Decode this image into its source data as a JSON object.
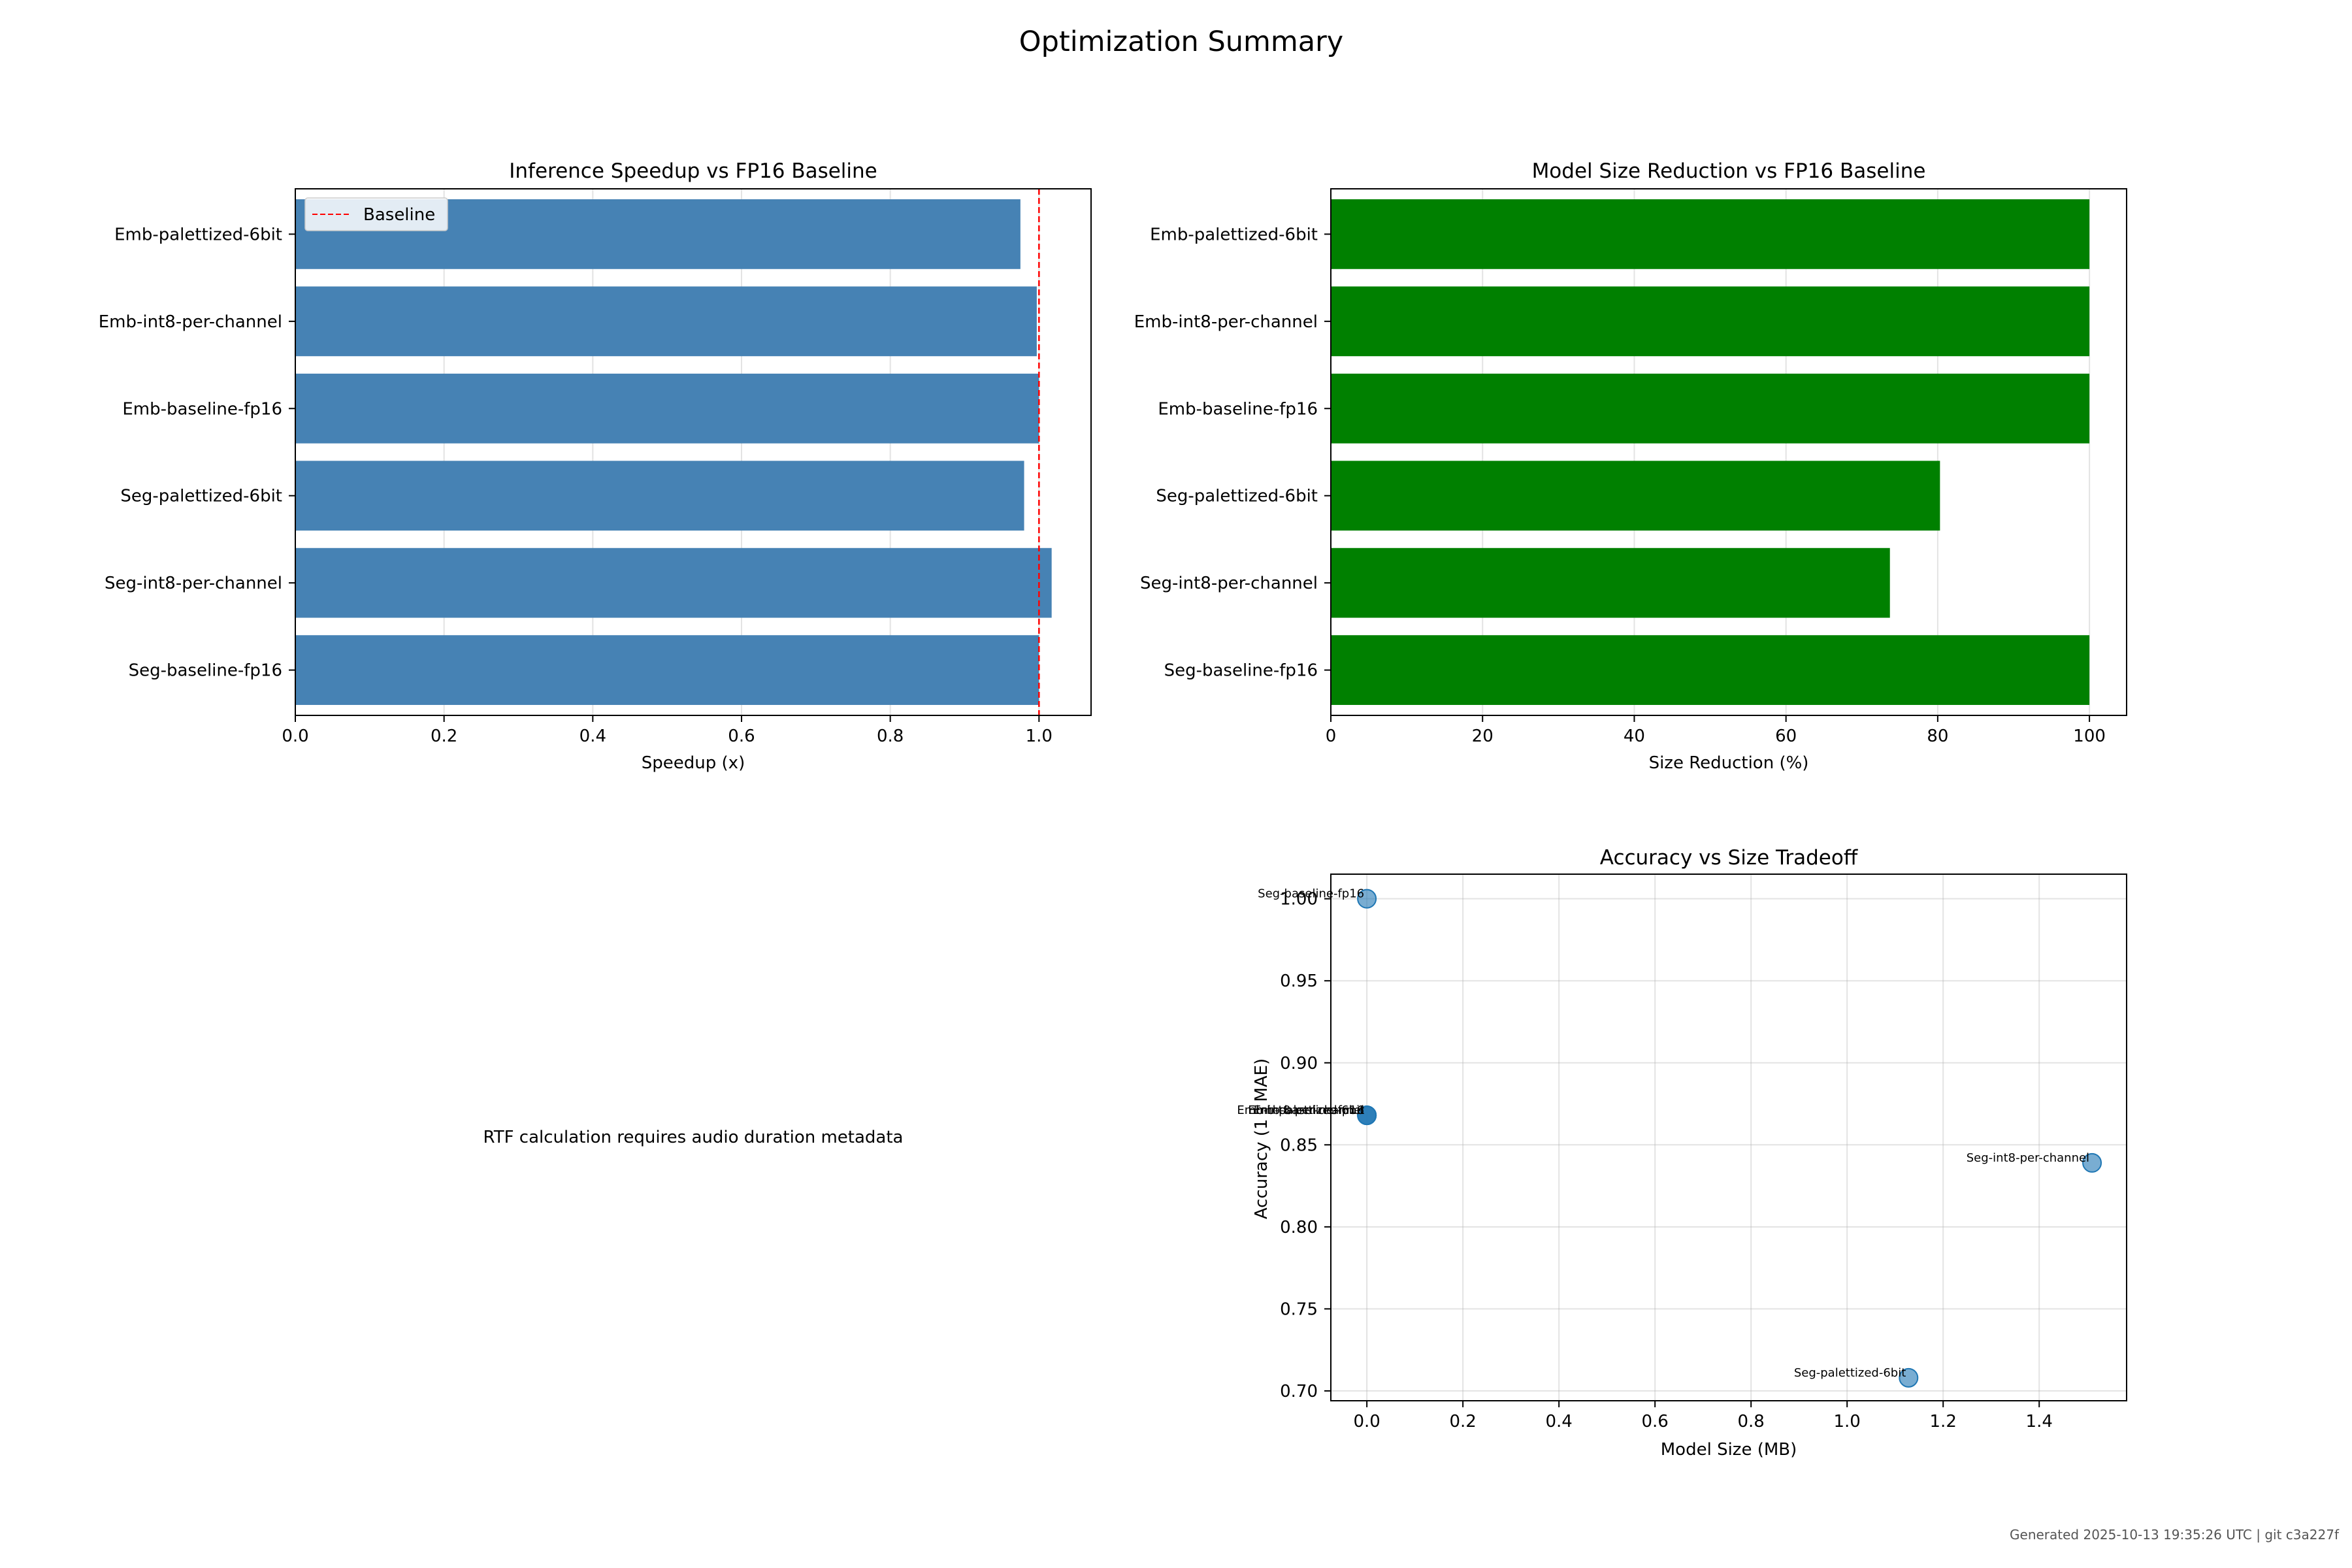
{
  "figure": {
    "title": "Optimization Summary",
    "footer": "Generated 2025-10-13 19:35:26 UTC | git c3a227f",
    "empty_panel_note": "RTF calculation requires audio duration metadata"
  },
  "chart_data": [
    {
      "type": "bar",
      "orientation": "horizontal",
      "title": "Inference Speedup vs FP16 Baseline",
      "xlabel": "Speedup (x)",
      "ylabel": "",
      "categories": [
        "Seg-baseline-fp16",
        "Seg-int8-per-channel",
        "Seg-palettized-6bit",
        "Emb-baseline-fp16",
        "Emb-int8-per-channel",
        "Emb-palettized-6bit"
      ],
      "values": [
        1.0,
        1.017,
        0.98,
        1.0,
        0.997,
        0.975
      ],
      "xlim": [
        0,
        1.07
      ],
      "xticks": [
        "0.0",
        "0.2",
        "0.4",
        "0.6",
        "0.8",
        "1.0"
      ],
      "reference_line": {
        "x": 1.0,
        "label": "Baseline",
        "color": "#ff0000",
        "style": "dashed"
      },
      "legend": "top-left",
      "grid": "x",
      "color": "#4682b4"
    },
    {
      "type": "bar",
      "orientation": "horizontal",
      "title": "Model Size Reduction vs FP16 Baseline",
      "xlabel": "Size Reduction (%)",
      "ylabel": "",
      "categories": [
        "Seg-baseline-fp16",
        "Seg-int8-per-channel",
        "Seg-palettized-6bit",
        "Emb-baseline-fp16",
        "Emb-int8-per-channel",
        "Emb-palettized-6bit"
      ],
      "values": [
        100,
        73.7,
        80.3,
        100,
        100,
        100
      ],
      "xlim": [
        0,
        104.9
      ],
      "xticks": [
        "0",
        "20",
        "40",
        "60",
        "80",
        "100"
      ],
      "grid": "x",
      "color": "#008000"
    },
    {
      "type": "scatter",
      "title": "Accuracy vs Size Tradeoff",
      "xlabel": "Model Size (MB)",
      "ylabel": "Accuracy (1 - MAE)",
      "xlim": [
        -0.075,
        1.582
      ],
      "ylim": [
        0.694,
        1.015
      ],
      "xticks": [
        "0.0",
        "0.2",
        "0.4",
        "0.6",
        "0.8",
        "1.0",
        "1.2",
        "1.4"
      ],
      "yticks": [
        "0.70",
        "0.75",
        "0.80",
        "0.85",
        "0.90",
        "0.95",
        "1.00"
      ],
      "grid": "both",
      "color": "#1f77b4",
      "points": [
        {
          "label": "Seg-baseline-fp16",
          "x": 0.0,
          "y": 1.0
        },
        {
          "label": "Seg-int8-per-channel",
          "x": 1.51,
          "y": 0.839
        },
        {
          "label": "Seg-palettized-6bit",
          "x": 1.128,
          "y": 0.708
        },
        {
          "label": "Emb-baseline-fp16",
          "x": 0.0,
          "y": 0.868
        },
        {
          "label": "Emb-int8-per-channel",
          "x": 0.0,
          "y": 0.868
        },
        {
          "label": "Emb-palettized-6bit",
          "x": 0.0,
          "y": 0.868
        }
      ]
    }
  ]
}
